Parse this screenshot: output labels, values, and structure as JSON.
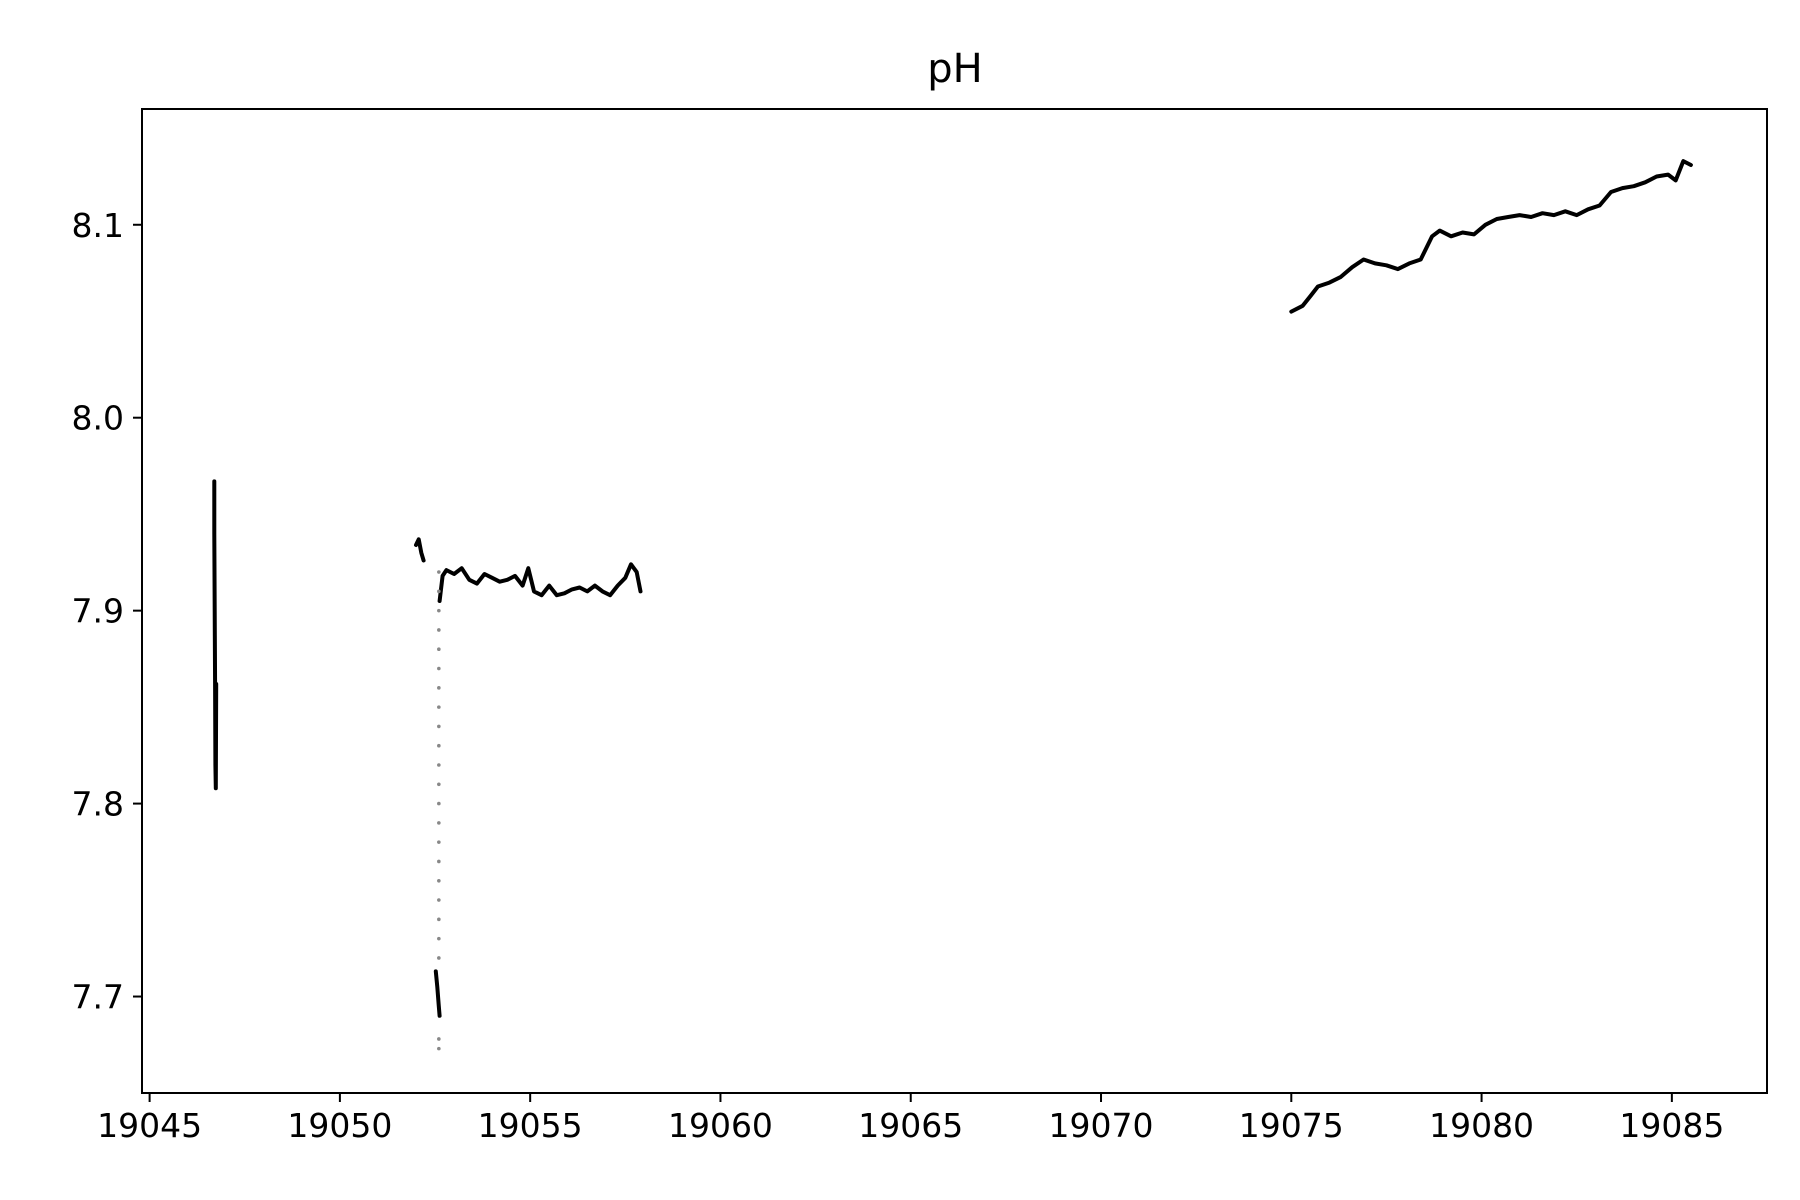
{
  "chart_data": {
    "type": "line",
    "title": "pH",
    "xlabel": "",
    "ylabel": "",
    "xlim": [
      19044.8,
      19087.5
    ],
    "ylim": [
      7.65,
      8.16
    ],
    "xticks": [
      19045,
      19050,
      19055,
      19060,
      19065,
      19070,
      19075,
      19080,
      19085
    ],
    "xtick_labels": [
      "19045",
      "19050",
      "19055",
      "19060",
      "19065",
      "19070",
      "19075",
      "19080",
      "19085"
    ],
    "yticks": [
      7.7,
      7.8,
      7.9,
      8.0,
      8.1
    ],
    "ytick_labels": [
      "7.7",
      "7.8",
      "7.9",
      "8.0",
      "8.1"
    ],
    "grid": false,
    "line_color": "#000000",
    "transition_marker_color": "#888888",
    "series": [
      {
        "segments": [
          {
            "x": [
              19046.7,
              19046.7,
              19046.71,
              19046.72,
              19046.73,
              19046.74,
              19046.75
            ],
            "y": [
              7.967,
              7.94,
              7.9,
              7.86,
              7.82,
              7.808,
              7.862
            ]
          },
          {
            "x": [
              19052.0,
              19052.07,
              19052.14,
              19052.2
            ],
            "y": [
              7.934,
              7.937,
              7.93,
              7.926
            ]
          },
          {
            "x": [
              19052.52,
              19052.56,
              19052.6,
              19052.62
            ],
            "y": [
              7.713,
              7.705,
              7.695,
              7.69
            ]
          },
          {
            "x": [
              19052.62,
              19052.7,
              19052.8,
              19053.0,
              19053.2,
              19053.4,
              19053.6,
              19053.8,
              19054.0,
              19054.2,
              19054.4,
              19054.6,
              19054.8,
              19054.95,
              19055.1,
              19055.3,
              19055.5,
              19055.7,
              19055.9,
              19056.1,
              19056.3,
              19056.5,
              19056.7,
              19056.9,
              19057.1,
              19057.3,
              19057.5,
              19057.65,
              19057.8,
              19057.9
            ],
            "y": [
              7.905,
              7.918,
              7.921,
              7.919,
              7.922,
              7.916,
              7.914,
              7.919,
              7.917,
              7.915,
              7.916,
              7.918,
              7.913,
              7.922,
              7.91,
              7.908,
              7.913,
              7.908,
              7.909,
              7.911,
              7.912,
              7.91,
              7.913,
              7.91,
              7.908,
              7.913,
              7.917,
              7.924,
              7.92,
              7.91
            ]
          },
          {
            "x": [
              19075.0,
              19075.3,
              19075.5,
              19075.7,
              19076.0,
              19076.3,
              19076.6,
              19076.9,
              19077.2,
              19077.5,
              19077.8,
              19078.1,
              19078.4,
              19078.7,
              19078.9,
              19079.2,
              19079.5,
              19079.8,
              19080.1,
              19080.4,
              19080.7,
              19081.0,
              19081.3,
              19081.6,
              19081.9,
              19082.2,
              19082.5,
              19082.8,
              19083.1,
              19083.4,
              19083.7,
              19084.0,
              19084.3,
              19084.6,
              19084.9,
              19085.1,
              19085.3,
              19085.5
            ],
            "y": [
              8.055,
              8.058,
              8.063,
              8.068,
              8.07,
              8.073,
              8.078,
              8.082,
              8.08,
              8.079,
              8.077,
              8.08,
              8.082,
              8.094,
              8.097,
              8.094,
              8.096,
              8.095,
              8.1,
              8.103,
              8.104,
              8.105,
              8.104,
              8.106,
              8.105,
              8.107,
              8.105,
              8.108,
              8.11,
              8.117,
              8.119,
              8.12,
              8.122,
              8.125,
              8.126,
              8.123,
              8.133,
              8.131
            ]
          }
        ],
        "transition_points": {
          "x": [
            19052.6,
            19052.6,
            19052.6,
            19052.6,
            19052.6,
            19052.6,
            19052.6,
            19052.6,
            19052.6,
            19052.6,
            19052.6,
            19052.6,
            19052.6,
            19052.6,
            19052.6,
            19052.6,
            19052.6,
            19052.6,
            19052.6,
            19052.6,
            19052.6,
            19052.6,
            19052.6
          ],
          "y": [
            7.673,
            7.678,
            7.72,
            7.73,
            7.74,
            7.75,
            7.76,
            7.77,
            7.78,
            7.79,
            7.8,
            7.81,
            7.82,
            7.83,
            7.84,
            7.85,
            7.86,
            7.87,
            7.88,
            7.89,
            7.9,
            7.91,
            7.92
          ]
        }
      }
    ]
  }
}
